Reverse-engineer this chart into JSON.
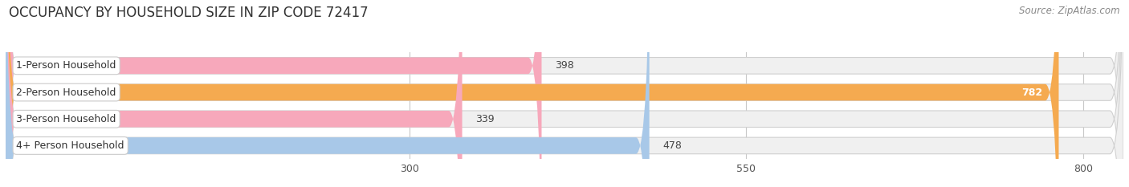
{
  "title": "OCCUPANCY BY HOUSEHOLD SIZE IN ZIP CODE 72417",
  "source": "Source: ZipAtlas.com",
  "categories": [
    "1-Person Household",
    "2-Person Household",
    "3-Person Household",
    "4+ Person Household"
  ],
  "values": [
    398,
    782,
    339,
    478
  ],
  "bar_colors": [
    "#f7a8bb",
    "#f5aa50",
    "#f7a8bb",
    "#a8c8e8"
  ],
  "bg_color": "#f0f0f0",
  "fig_bg_color": "#ffffff",
  "xlim_min": 0,
  "xlim_max": 830,
  "xticks": [
    300,
    550,
    800
  ],
  "title_fontsize": 12,
  "source_fontsize": 8.5,
  "label_fontsize": 9,
  "value_fontsize": 9,
  "tick_fontsize": 9,
  "bar_height": 0.62,
  "figsize": [
    14.06,
    2.33
  ],
  "dpi": 100
}
